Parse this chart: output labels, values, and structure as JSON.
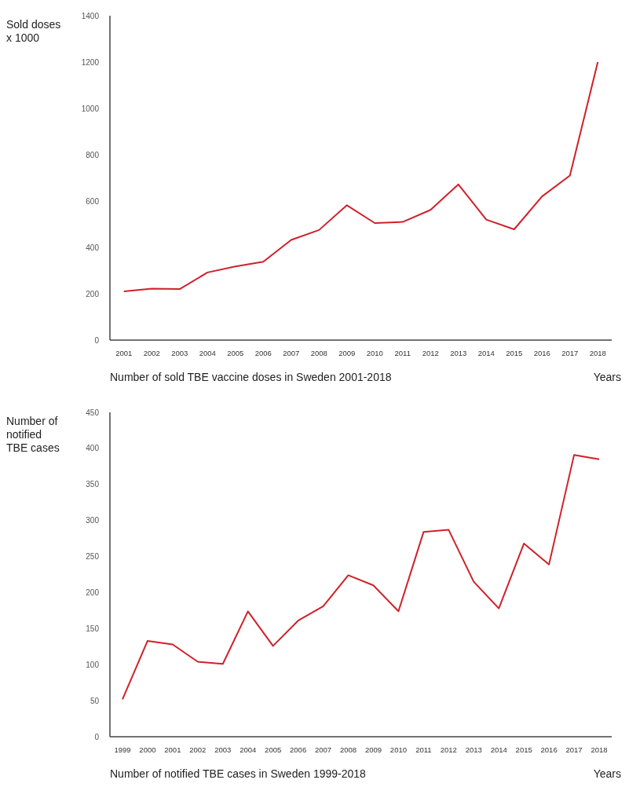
{
  "chart_data": [
    {
      "type": "line",
      "ylabel": "Sold doses x 1000",
      "xlabel": "Years",
      "annotations": [
        "Number of sold TBE vaccine doses in Sweden 2001-2018"
      ],
      "categories": [
        "2001",
        "2002",
        "2003",
        "2004",
        "2005",
        "2006",
        "2007",
        "2008",
        "2009",
        "2010",
        "2011",
        "2012",
        "2013",
        "2014",
        "2015",
        "2016",
        "2017",
        "2018"
      ],
      "series": [
        {
          "color": "#d0202a",
          "values": [
            210,
            222,
            220,
            292,
            318,
            338,
            432,
            475,
            582,
            505,
            510,
            562,
            672,
            520,
            478,
            620,
            710,
            1200
          ]
        }
      ],
      "ylim": [
        0,
        1400
      ],
      "yticks": [
        0,
        200,
        400,
        600,
        800,
        1000,
        1200,
        1400
      ],
      "grid": false,
      "marker": "none",
      "line_style": "solid"
    },
    {
      "type": "line",
      "ylabel": "Number of notified TBE cases",
      "xlabel": "Years",
      "annotations": [
        "Number of notified TBE cases in Sweden 1999-2018"
      ],
      "categories": [
        "1999",
        "2000",
        "2001",
        "2002",
        "2003",
        "2004",
        "2005",
        "2006",
        "2007",
        "2008",
        "2009",
        "2010",
        "2011",
        "2012",
        "2013",
        "2014",
        "2015",
        "2016",
        "2017",
        "2018"
      ],
      "series": [
        {
          "color": "#d0202a",
          "values": [
            52,
            133,
            128,
            104,
            101,
            174,
            126,
            161,
            181,
            224,
            210,
            174,
            284,
            287,
            215,
            178,
            268,
            239,
            391,
            385
          ]
        }
      ],
      "ylim": [
        0,
        450
      ],
      "yticks": [
        0,
        50,
        100,
        150,
        200,
        250,
        300,
        350,
        400,
        450
      ],
      "grid": false,
      "marker": "none",
      "line_style": "solid"
    }
  ]
}
